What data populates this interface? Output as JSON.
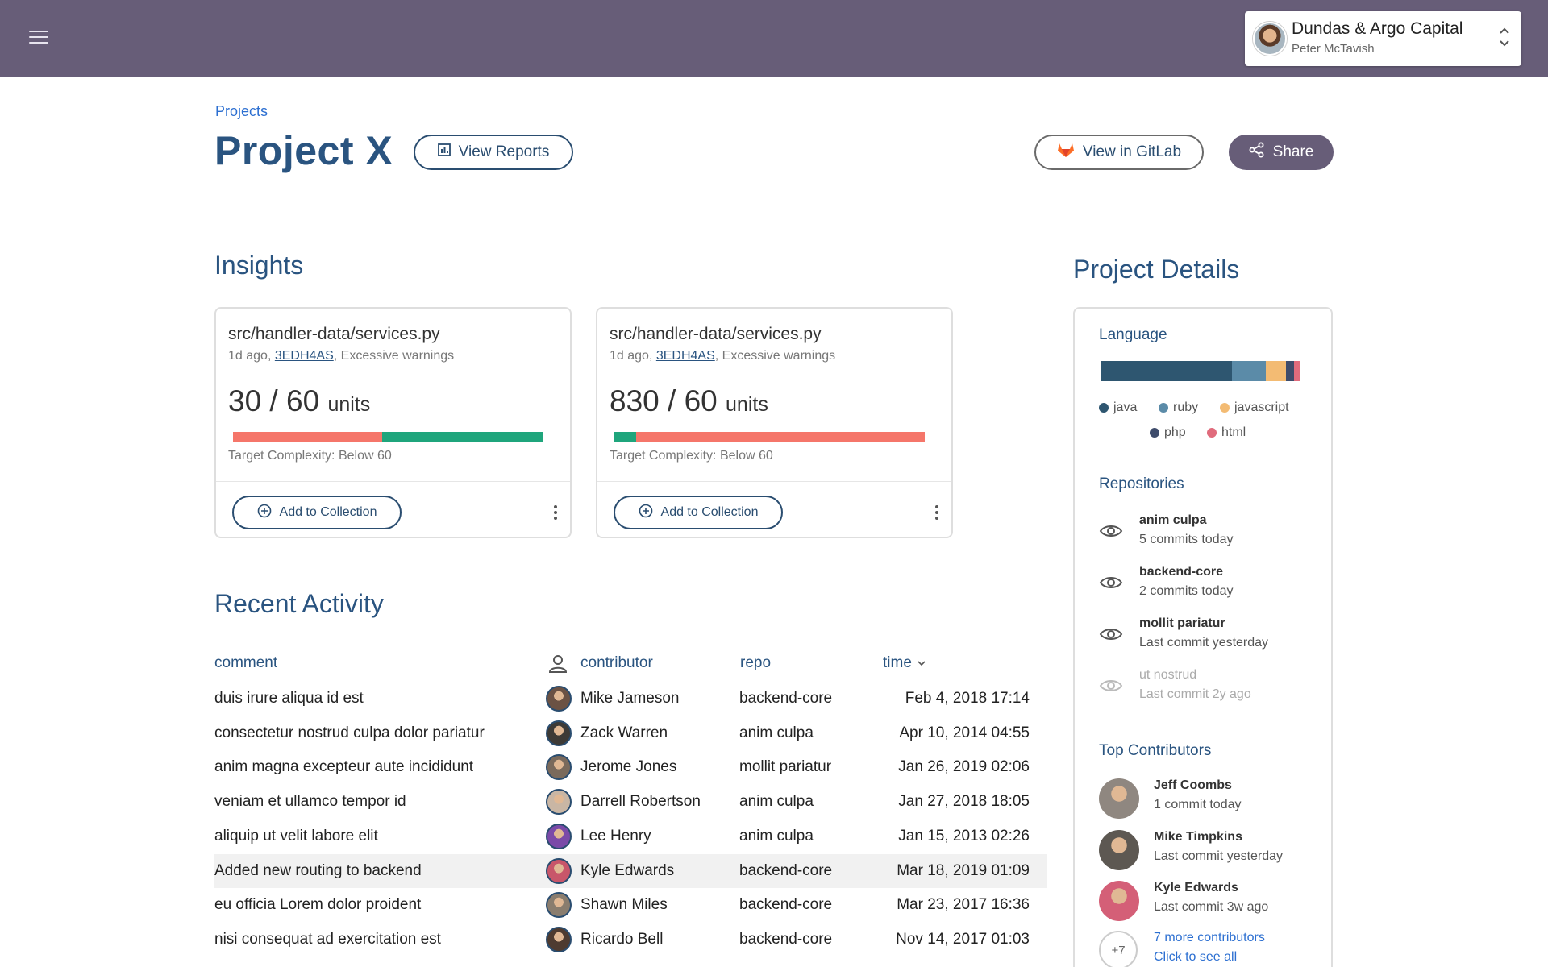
{
  "topbar": {
    "org_name": "Dundas & Argo Capital",
    "user_name": "Peter McTavish",
    "colors": {
      "bar": "#675d78"
    }
  },
  "header": {
    "breadcrumb": "Projects",
    "title": "Project X",
    "view_reports_label": "View Reports",
    "view_gitlab_label": "View in GitLab",
    "share_label": "Share"
  },
  "insights": {
    "title": "Insights",
    "cards": [
      {
        "path": "src/handler-data/services.py",
        "meta_prefix": "1d ago, ",
        "commit": "3EDH4AS",
        "meta_suffix": ", Excessive warnings",
        "units": "30 / 60",
        "units_suffix": "units",
        "target": "Target Complexity: Below 60",
        "bar": {
          "first_color": "#f5766a",
          "first_fraction": 0.48,
          "second_color": "#1fa57c"
        },
        "add_label": "Add to Collection"
      },
      {
        "path": "src/handler-data/services.py",
        "meta_prefix": "1d ago, ",
        "commit": "3EDH4AS",
        "meta_suffix": ", Excessive warnings",
        "units": "830 / 60",
        "units_suffix": "units",
        "target": "Target Complexity: Below 60",
        "bar": {
          "first_color": "#1fa57c",
          "first_fraction": 0.07,
          "second_color": "#f5766a"
        },
        "add_label": "Add to Collection"
      }
    ]
  },
  "activity": {
    "title": "Recent Activity",
    "headers": {
      "comment": "comment",
      "contributor": "contributor",
      "repo": "repo",
      "time": "time"
    },
    "rows": [
      {
        "comment": "duis irure aliqua id est",
        "contributor": "Mike Jameson",
        "repo": "backend-core",
        "time": "Feb 4, 2018 17:14",
        "avatar_color": "#6b5244"
      },
      {
        "comment": "consectetur nostrud culpa dolor pariatur",
        "contributor": "Zack Warren",
        "repo": "anim culpa",
        "time": "Apr 10, 2014 04:55",
        "avatar_color": "#3d3a36"
      },
      {
        "comment": "anim magna excepteur aute incididunt",
        "contributor": "Jerome Jones",
        "repo": "mollit pariatur",
        "time": "Jan 26, 2019 02:06",
        "avatar_color": "#7a6a5c"
      },
      {
        "comment": "veniam et ullamco tempor id",
        "contributor": "Darrell Robertson",
        "repo": "anim culpa",
        "time": "Jan 27, 2018 18:05",
        "avatar_color": "#c9b6a4"
      },
      {
        "comment": "aliquip ut velit labore elit",
        "contributor": "Lee Henry",
        "repo": "anim culpa",
        "time": "Jan 15, 2013 02:26",
        "avatar_color": "#7b4aa8"
      },
      {
        "comment": "Added new routing to backend",
        "contributor": "Kyle Edwards",
        "repo": "backend-core",
        "time": "Mar 18, 2019 01:09",
        "avatar_color": "#c8566a"
      },
      {
        "comment": "eu officia Lorem dolor proident",
        "contributor": "Shawn Miles",
        "repo": "backend-core",
        "time": "Mar 23, 2017 16:36",
        "avatar_color": "#8a7d6e"
      },
      {
        "comment": "nisi consequat ad exercitation est",
        "contributor": "Ricardo Bell",
        "repo": "backend-core",
        "time": "Nov 14, 2017 01:03",
        "avatar_color": "#4e3b30"
      }
    ]
  },
  "details": {
    "title": "Project Details",
    "language_label": "Language",
    "languages": [
      {
        "name": "java",
        "color": "#2e5670",
        "fraction": 0.66
      },
      {
        "name": "ruby",
        "color": "#5b8ba8",
        "fraction": 0.17
      },
      {
        "name": "javascript",
        "color": "#f3bb73",
        "fraction": 0.1
      },
      {
        "name": "php",
        "color": "#3e4c6b",
        "fraction": 0.04
      },
      {
        "name": "html",
        "color": "#e06b7c",
        "fraction": 0.03
      }
    ],
    "repositories_label": "Repositories",
    "repositories": [
      {
        "name": "anim culpa",
        "sub": "5 commits today"
      },
      {
        "name": "backend-core",
        "sub": "2 commits today"
      },
      {
        "name": "mollit pariatur",
        "sub": "Last commit yesterday"
      },
      {
        "name": "ut nostrud",
        "sub": "Last commit 2y ago"
      }
    ],
    "contributors_label": "Top Contributors",
    "contributors": [
      {
        "name": "Jeff Coombs",
        "sub": "1 commit today",
        "avatar_color": "#8f8780"
      },
      {
        "name": "Mike Timpkins",
        "sub": "Last commit yesterday",
        "avatar_color": "#5d5852"
      },
      {
        "name": "Kyle Edwards",
        "sub": "Last commit 3w ago",
        "avatar_color": "#d45f77"
      }
    ],
    "more": {
      "count": "+7",
      "label": "7 more contributors",
      "sub": "Click to see all"
    }
  }
}
